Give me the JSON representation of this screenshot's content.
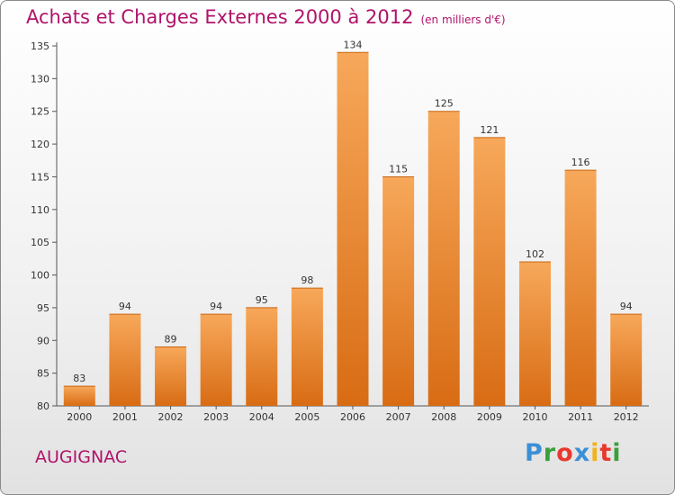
{
  "title": "Achats et Charges Externes 2000 à 2012",
  "subtitle": "(en milliers d'€)",
  "place": "AUGIGNAC",
  "logo": {
    "letters": [
      "P",
      "r",
      "o",
      "x",
      "i",
      "t",
      "i"
    ],
    "colors": [
      "#3b8fd6",
      "#39a03c",
      "#e8382e",
      "#3b8fd6",
      "#f2b21c",
      "#e8382e",
      "#39a03c"
    ]
  },
  "colors": {
    "title": "#b0136a",
    "bar_light": "#f7a85a",
    "bar_dark": "#d86c14",
    "axis": "#555555"
  },
  "chart_data": {
    "type": "bar",
    "title": "Achats et Charges Externes 2000 à 2012",
    "subtitle": "(en milliers d'€)",
    "categories": [
      "2000",
      "2001",
      "2002",
      "2003",
      "2004",
      "2005",
      "2006",
      "2007",
      "2008",
      "2009",
      "2010",
      "2011",
      "2012"
    ],
    "values": [
      83,
      94,
      89,
      94,
      95,
      98,
      134,
      115,
      125,
      121,
      102,
      116,
      94
    ],
    "ylim": [
      80,
      135
    ],
    "yticks": [
      80,
      85,
      90,
      95,
      100,
      105,
      110,
      115,
      120,
      125,
      130,
      135
    ],
    "grid": false,
    "data_labels": true
  }
}
